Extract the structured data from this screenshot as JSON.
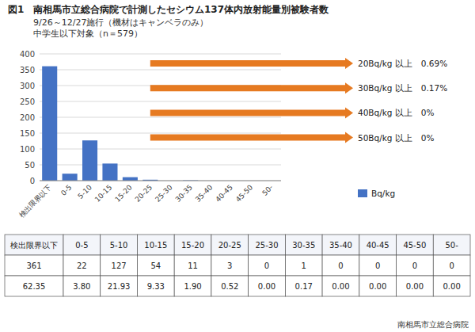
{
  "chart_data": {
    "type": "bar",
    "figure_label": "図1",
    "title": "南相馬市立総合病院で計測したセシウム137体内放射能量別被験者数",
    "subtitle": [
      "9/26～12/27施行（機材はキャンベラのみ）",
      "中学生以下対象（n＝579）"
    ],
    "categories": [
      "検出限界以下",
      "0-5",
      "5-10",
      "10-15",
      "15-20",
      "20-25",
      "25-30",
      "30-35",
      "35-40",
      "40-45",
      "45-50",
      "50-"
    ],
    "series": [
      {
        "name": "Bq/kg",
        "color": "#4472C4",
        "values": [
          361,
          22,
          127,
          54,
          11,
          3,
          0,
          1,
          0,
          0,
          0,
          0
        ]
      }
    ],
    "ylim": [
      0,
      400
    ],
    "yticks": [
      0,
      50,
      100,
      150,
      200,
      250,
      300,
      350,
      400
    ],
    "grid": true,
    "legend": "lower right",
    "annotations": [
      {
        "text": "20Bq/kg 以上　0.69%",
        "color": "#E36C09"
      },
      {
        "text": "30Bq/kg 以上　0.17%",
        "color": "#E36C09"
      },
      {
        "text": "40Bq/kg 以上　0%",
        "color": "#E36C09"
      },
      {
        "text": "50Bq/kg 以上　0%",
        "color": "#E36C09"
      }
    ],
    "table": {
      "columns": [
        "検出限界以下",
        "0-5",
        "5-10",
        "10-15",
        "15-20",
        "20-25",
        "25-30",
        "30-35",
        "35-40",
        "40-45",
        "45-50",
        "50-"
      ],
      "rows": [
        [
          "361",
          "22",
          "127",
          "54",
          "11",
          "3",
          "0",
          "1",
          "0",
          "0",
          "0",
          "0"
        ],
        [
          "62.35",
          "3.80",
          "21.93",
          "9.33",
          "1.90",
          "0.52",
          "0.00",
          "0.17",
          "0.00",
          "0.00",
          "0.00",
          "0.00"
        ]
      ]
    },
    "source": "南相馬市立総合病院"
  }
}
